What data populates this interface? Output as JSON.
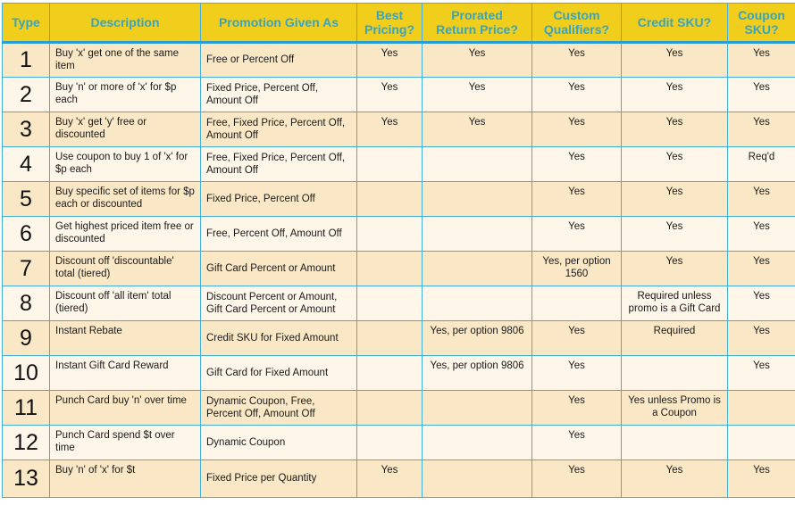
{
  "colors": {
    "page_bg": "#FFFFFF",
    "header_bg": "#F2CE1C",
    "header_text": "#33A5C8",
    "grid_border": "#41AFD9",
    "header_underline": "#2C9DD4",
    "row_odd_bg": "#FAE7C5",
    "row_even_bg": "#FDF6E9",
    "cell_text": "#1A1A1A"
  },
  "chart_data": {
    "type": "table",
    "title": "",
    "columns": [
      "Type",
      "Description",
      "Promotion Given As",
      "Best Pricing?",
      "Prorated Return Price?",
      "Custom Qualifiers?",
      "Credit SKU?",
      "Coupon SKU?"
    ]
  },
  "table": {
    "columns": [
      {
        "key": "type",
        "label": "Type"
      },
      {
        "key": "description",
        "label": "Description"
      },
      {
        "key": "promotion",
        "label": "Promotion Given As"
      },
      {
        "key": "best_pricing",
        "label": "Best Pricing?"
      },
      {
        "key": "prorated",
        "label": "Prorated Return Price?"
      },
      {
        "key": "custom",
        "label": "Custom Qualifiers?"
      },
      {
        "key": "credit",
        "label": "Credit SKU?"
      },
      {
        "key": "coupon",
        "label": "Coupon SKU?"
      }
    ],
    "rows": [
      {
        "type": "1",
        "description": "Buy 'x' get one of the same item",
        "promotion": "Free or Percent Off",
        "best_pricing": "Yes",
        "prorated": "Yes",
        "custom": "Yes",
        "credit": "Yes",
        "coupon": "Yes"
      },
      {
        "type": "2",
        "description": "Buy 'n' or more of 'x' for $p each",
        "promotion": "Fixed Price, Percent Off, Amount Off",
        "best_pricing": "Yes",
        "prorated": "Yes",
        "custom": "Yes",
        "credit": "Yes",
        "coupon": "Yes"
      },
      {
        "type": "3",
        "description": "Buy 'x' get 'y' free or discounted",
        "promotion": "Free, Fixed Price, Percent Off, Amount Off",
        "best_pricing": "Yes",
        "prorated": "Yes",
        "custom": "Yes",
        "credit": "Yes",
        "coupon": "Yes"
      },
      {
        "type": "4",
        "description": "Use coupon to buy 1 of 'x' for $p each",
        "promotion": "Free, Fixed Price, Percent Off, Amount Off",
        "best_pricing": "",
        "prorated": "",
        "custom": "Yes",
        "credit": "Yes",
        "coupon": "Req'd"
      },
      {
        "type": "5",
        "description": "Buy specific set of items for $p each or discounted",
        "promotion": "Fixed Price, Percent Off",
        "best_pricing": "",
        "prorated": "",
        "custom": "Yes",
        "credit": "Yes",
        "coupon": "Yes"
      },
      {
        "type": "6",
        "description": "Get highest priced item free or discounted",
        "promotion": "Free, Percent Off, Amount Off",
        "best_pricing": "",
        "prorated": "",
        "custom": "Yes",
        "credit": "Yes",
        "coupon": "Yes"
      },
      {
        "type": "7",
        "description": "Discount off 'discountable' total (tiered)",
        "promotion": "Gift Card Percent or Amount",
        "best_pricing": "",
        "prorated": "",
        "custom": "Yes, per option 1560",
        "credit": "Yes",
        "coupon": "Yes"
      },
      {
        "type": "8",
        "description": "Discount off 'all item' total (tiered)",
        "promotion": "Discount Percent or Amount, Gift Card Percent or Amount",
        "best_pricing": "",
        "prorated": "",
        "custom": "",
        "credit": "Required unless promo is a Gift Card",
        "coupon": "Yes"
      },
      {
        "type": "9",
        "description": "Instant Rebate",
        "promotion": "Credit SKU for Fixed Amount",
        "best_pricing": "",
        "prorated": "Yes, per option 9806",
        "custom": "Yes",
        "credit": "Required",
        "coupon": "Yes"
      },
      {
        "type": "10",
        "description": "Instant Gift Card Reward",
        "promotion": "Gift Card for Fixed Amount",
        "best_pricing": "",
        "prorated": "Yes, per option 9806",
        "custom": "Yes",
        "credit": "",
        "coupon": "Yes"
      },
      {
        "type": "11",
        "description": "Punch Card buy 'n' over time",
        "promotion": "Dynamic Coupon, Free, Percent Off, Amount Off",
        "best_pricing": "",
        "prorated": "",
        "custom": "Yes",
        "credit": "Yes unless Promo is a Coupon",
        "coupon": ""
      },
      {
        "type": "12",
        "description": "Punch Card spend $t over time",
        "promotion": "Dynamic Coupon",
        "best_pricing": "",
        "prorated": "",
        "custom": "Yes",
        "credit": "",
        "coupon": ""
      },
      {
        "type": "13",
        "description": "Buy 'n' of 'x' for $t",
        "promotion": "Fixed Price per Quantity",
        "best_pricing": "Yes",
        "prorated": "",
        "custom": "Yes",
        "credit": "Yes",
        "coupon": "Yes"
      }
    ]
  }
}
